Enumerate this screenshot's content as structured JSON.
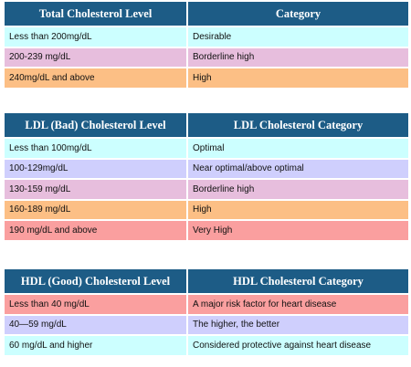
{
  "total": {
    "headers": [
      "Total Cholesterol Level",
      "Category"
    ],
    "rows": [
      {
        "level": "Less than 200mg/dL",
        "category": "Desirable"
      },
      {
        "level": "200-239 mg/dL",
        "category": "Borderline high"
      },
      {
        "level": "240mg/dL and above",
        "category": "High"
      }
    ]
  },
  "ldl": {
    "headers": [
      "LDL (Bad) Cholesterol Level",
      "LDL Cholesterol Category"
    ],
    "rows": [
      {
        "level": "Less than 100mg/dL",
        "category": "Optimal"
      },
      {
        "level": "100-129mg/dL",
        "category": "Near optimal/above optimal"
      },
      {
        "level": "130-159 mg/dL",
        "category": "Borderline high"
      },
      {
        "level": "160-189 mg/dL",
        "category": "High"
      },
      {
        "level": "190 mg/dL and above",
        "category": "Very High"
      }
    ]
  },
  "hdl": {
    "headers": [
      "HDL (Good) Cholesterol Level",
      "HDL Cholesterol Category"
    ],
    "rows": [
      {
        "level": "Less than 40 mg/dL",
        "category": "A major risk factor for heart disease"
      },
      {
        "level": "40—59 mg/dL",
        "category": "The higher, the better"
      },
      {
        "level": "60 mg/dL and higher",
        "category": "Considered protective against heart disease"
      }
    ]
  },
  "colors": {
    "header": "#1d5c86",
    "cyan": "#ccffff",
    "pink": "#e7bedd",
    "orange": "#fcbf85",
    "lavender": "#cfcffd",
    "red": "#fa9f9f"
  }
}
